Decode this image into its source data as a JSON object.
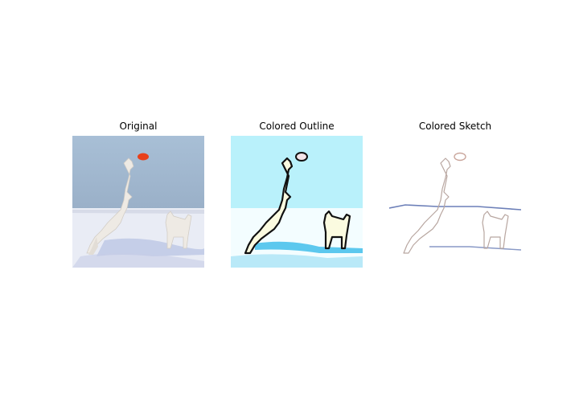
{
  "panels": [
    {
      "title": "Original"
    },
    {
      "title": "Colored Outline"
    },
    {
      "title": "Colored Sketch"
    }
  ],
  "colors": {
    "sky_original": "#9fb9d3",
    "snow_original": "#e9ecf5",
    "frisbee": "#e8401a",
    "sky_outline": "#b9f1fb",
    "snow_outline": "#f3fdff",
    "water_outline": "#29b6e8",
    "dog_fill_outline": "#fbfbe0",
    "outline_stroke": "#111111",
    "sketch_stroke": "#b8a6a0",
    "horizon_sketch": "#6c7fb8"
  },
  "images": {
    "subject": "white dog leaping for a red frisbee with a second dog standing on snow"
  }
}
